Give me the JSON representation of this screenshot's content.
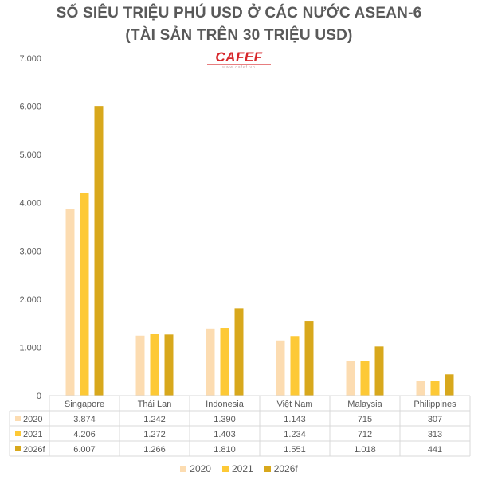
{
  "title_line1": "SỐ SIÊU TRIỆU PHÚ USD Ở CÁC NƯỚC ASEAN-6",
  "title_line2": "(TÀI SẢN TRÊN 30 TRIỆU USD)",
  "logo": {
    "text": "CAFEF",
    "subtext": "www.cafef.vn"
  },
  "colors": {
    "2020": "#fcdcb1",
    "2021": "#fdc936",
    "2026f": "#d8a81c",
    "grid": "#d9d9d9",
    "text": "#595959"
  },
  "chart_data": {
    "type": "bar",
    "title": "SỐ SIÊU TRIỆU PHÚ USD Ở CÁC NƯỚC ASEAN-6 (TÀI SẢN TRÊN 30 TRIỆU USD)",
    "categories": [
      "Singapore",
      "Thái Lan",
      "Indonesia",
      "Việt Nam",
      "Malaysia",
      "Philippines"
    ],
    "series": [
      {
        "name": "2020",
        "values": [
          3874,
          1242,
          1390,
          1143,
          715,
          307
        ],
        "labels": [
          "3.874",
          "1.242",
          "1.390",
          "1.143",
          "715",
          "307"
        ]
      },
      {
        "name": "2021",
        "values": [
          4206,
          1272,
          1403,
          1234,
          712,
          313
        ],
        "labels": [
          "4.206",
          "1.272",
          "1.403",
          "1.234",
          "712",
          "313"
        ]
      },
      {
        "name": "2026f",
        "values": [
          6007,
          1266,
          1810,
          1551,
          1018,
          441
        ],
        "labels": [
          "6.007",
          "1.266",
          "1.810",
          "1.551",
          "1.018",
          "441"
        ]
      }
    ],
    "yticks": [
      0,
      1000,
      2000,
      3000,
      4000,
      5000,
      6000,
      7000
    ],
    "ytick_labels": [
      "0",
      "1.000",
      "2.000",
      "3.000",
      "4.000",
      "5.000",
      "6.000",
      "7.000"
    ],
    "ylim": [
      0,
      7000
    ],
    "data_table": true,
    "legend_position": "bottom",
    "grid": false
  }
}
